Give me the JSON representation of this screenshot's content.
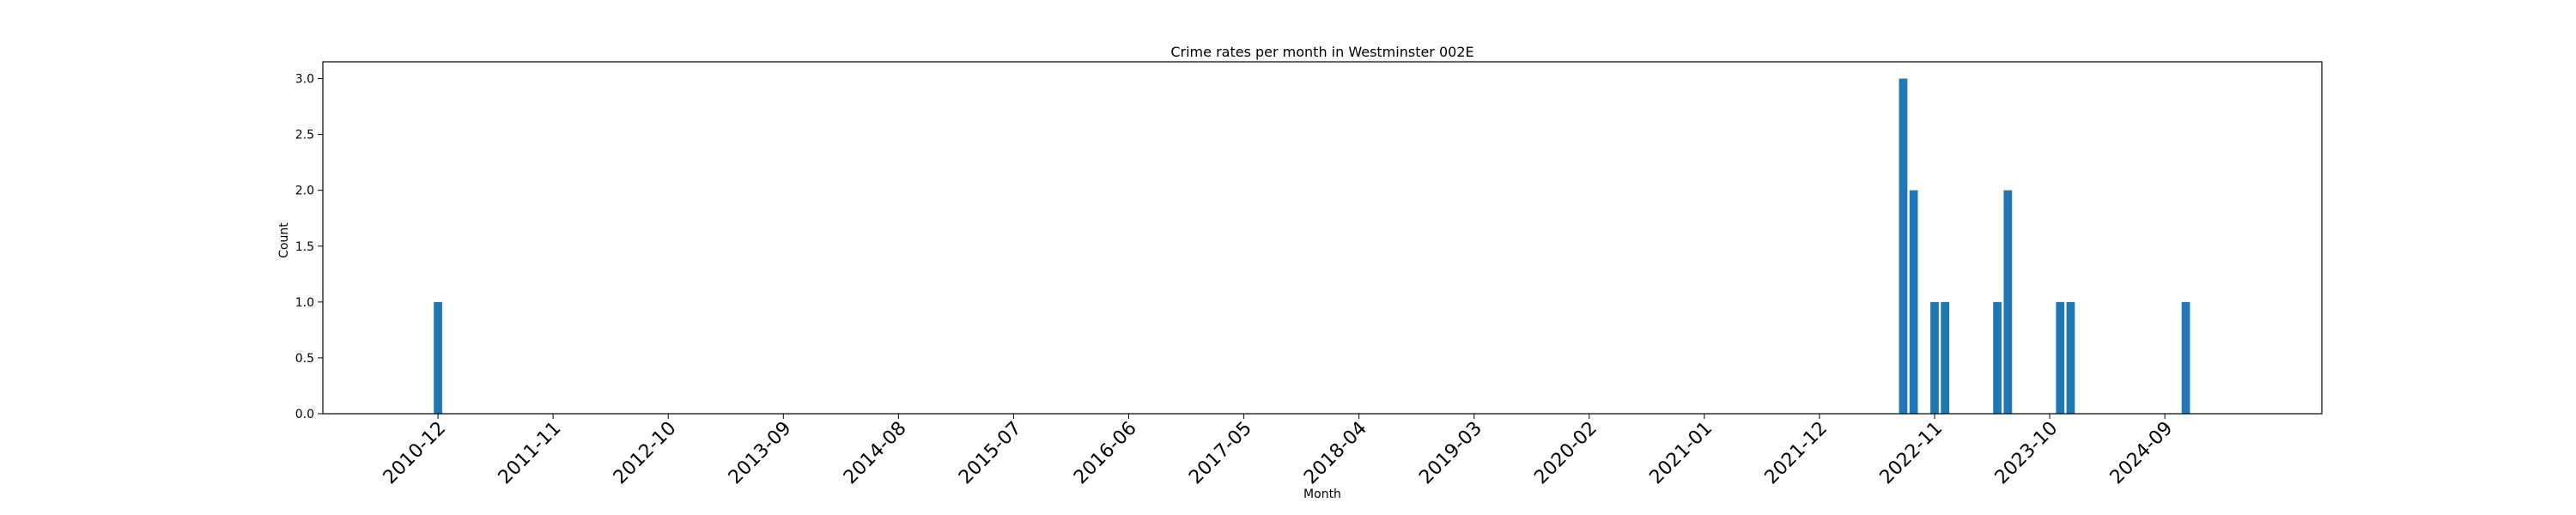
{
  "chart_data": {
    "type": "bar",
    "title": "Crime rates per month in Westminster 002E",
    "xlabel": "Month",
    "ylabel": "Count",
    "x_tick_labels": [
      "2010-12",
      "2011-11",
      "2012-10",
      "2013-09",
      "2014-08",
      "2015-07",
      "2016-06",
      "2017-05",
      "2018-04",
      "2019-03",
      "2020-02",
      "2021-01",
      "2021-12",
      "2022-11",
      "2023-10",
      "2024-09"
    ],
    "y_tick_labels": [
      "0.0",
      "0.5",
      "1.0",
      "1.5",
      "2.0",
      "2.5",
      "3.0"
    ],
    "xlim": [
      "2010-01",
      "2025-12"
    ],
    "ylim": [
      0,
      3.15
    ],
    "grid": false,
    "color": "#1f77b4",
    "categories": [
      "2010-12",
      "2022-08",
      "2022-09",
      "2022-11",
      "2022-12",
      "2023-05",
      "2023-06",
      "2023-11",
      "2023-12",
      "2024-11"
    ],
    "values": [
      1,
      3,
      2,
      1,
      1,
      1,
      2,
      1,
      1,
      1
    ]
  }
}
